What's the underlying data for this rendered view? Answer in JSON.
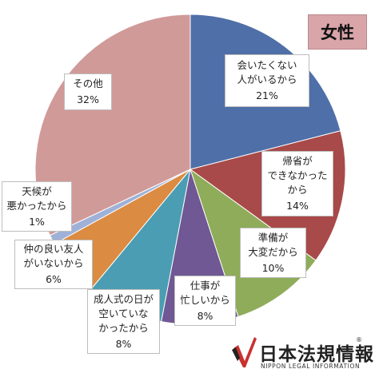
{
  "chart_data": {
    "type": "pie",
    "title": "女性",
    "slices": [
      {
        "label": [
          "会いたくない",
          "人がいるから"
        ],
        "value": 21,
        "pct": "21%",
        "color": "#4f6fa8"
      },
      {
        "label": [
          "帰省が",
          "できなかった",
          "から"
        ],
        "value": 14,
        "pct": "14%",
        "color": "#a84a49"
      },
      {
        "label": [
          "準備が",
          "大変だから"
        ],
        "value": 10,
        "pct": "10%",
        "color": "#8fac5a"
      },
      {
        "label": [
          "仕事が",
          "忙しいから"
        ],
        "value": 8,
        "pct": "8%",
        "color": "#6f5893"
      },
      {
        "label": [
          "成人式の日が",
          "空いていな",
          "かったから"
        ],
        "value": 8,
        "pct": "8%",
        "color": "#4a9db2"
      },
      {
        "label": [
          "仲の良い友人",
          "がいないから"
        ],
        "value": 6,
        "pct": "6%",
        "color": "#db8b42"
      },
      {
        "label": [
          "天候が",
          "悪かったから"
        ],
        "value": 1,
        "pct": "1%",
        "color": "#9fb1d6"
      },
      {
        "label": [
          "その他"
        ],
        "value": 32,
        "pct": "32%",
        "color": "#d09a98"
      }
    ]
  },
  "logo": {
    "text": "日本法規情報",
    "reg": "®",
    "subtext": "NIPPON LEGAL INFORMATION",
    "color": "#c8312f"
  }
}
